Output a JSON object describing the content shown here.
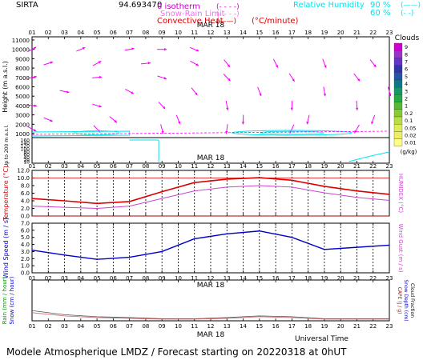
{
  "header": {
    "station": "SIRTA",
    "station_code": "94.69347",
    "extra": "0",
    "legend_isotherm": "0 isotherm",
    "legend_snow_rain": "Snow-Rain Limit",
    "legend_convective": "Convective Heat",
    "legend_convective_unit": "(°C/minute)",
    "legend_rh": "Relative Humidity",
    "rh_90": "90 %",
    "rh_60": "60 %"
  },
  "date_label": "MAR 18",
  "hours": [
    "01",
    "02",
    "03",
    "04",
    "05",
    "06",
    "07",
    "08",
    "09",
    "10",
    "11",
    "12",
    "13",
    "14",
    "15",
    "16",
    "17",
    "18",
    "19",
    "20",
    "21",
    "22",
    "23"
  ],
  "footer": {
    "universal_time": "Universal Time",
    "credit": "Modele Atmospherique LMDZ / Forecast starting on 20220318 at 0hUT"
  },
  "colors": {
    "wind_arrows": "#ff00ff",
    "temperature": "#dd0000",
    "humidex": "#cc44cc",
    "wind_speed": "#0000cc",
    "humidity": "#00e5ee",
    "rain": "#009900",
    "snow": "#0000cc",
    "cloud_fraction": "#000000",
    "capc": "#cc0000"
  },
  "chart_data": [
    {
      "id": "wind_profile",
      "type": "scatter",
      "ylabel": "Height  (m a.s.l.)",
      "ylabel2": "Up to 200 m a.s.l.",
      "upper_ticks": [
        1000,
        2000,
        3000,
        4000,
        5000,
        6000,
        7000,
        8000,
        9000,
        10000,
        11000
      ],
      "lower_ticks": [
        10,
        20,
        40,
        60,
        80,
        100,
        120,
        140,
        160
      ],
      "levels": [
        1000,
        2000,
        3000,
        4000,
        5000,
        6000,
        7000,
        8000,
        9000,
        10000,
        11000
      ],
      "arrows": [
        {
          "hour": 1,
          "level": 10000,
          "dir": 0.5
        },
        {
          "hour": 4,
          "level": 10000,
          "dir": 0.4
        },
        {
          "hour": 7,
          "level": 10000,
          "dir": 0.2
        },
        {
          "hour": 9,
          "level": 10000,
          "dir": 0.0
        },
        {
          "hour": 11,
          "level": 10000,
          "dir": -0.4
        },
        {
          "hour": 2,
          "level": 8500,
          "dir": 0.3
        },
        {
          "hour": 5,
          "level": 8500,
          "dir": 0.5
        },
        {
          "hour": 8,
          "level": 8500,
          "dir": 0.1
        },
        {
          "hour": 11,
          "level": 8500,
          "dir": -0.5
        },
        {
          "hour": 13,
          "level": 8500,
          "dir": -0.9
        },
        {
          "hour": 16,
          "level": 8500,
          "dir": -1.1
        },
        {
          "hour": 19,
          "level": 8500,
          "dir": -1.2
        },
        {
          "hour": 22,
          "level": 8500,
          "dir": -0.9
        },
        {
          "hour": 1,
          "level": 7000,
          "dir": 0.2
        },
        {
          "hour": 5,
          "level": 7000,
          "dir": 0.1
        },
        {
          "hour": 9,
          "level": 7000,
          "dir": -0.3
        },
        {
          "hour": 13,
          "level": 7000,
          "dir": -0.8
        },
        {
          "hour": 17,
          "level": 7000,
          "dir": -1.0
        },
        {
          "hour": 21,
          "level": 7000,
          "dir": -0.9
        },
        {
          "hour": 3,
          "level": 5500,
          "dir": -0.2
        },
        {
          "hour": 7,
          "level": 5500,
          "dir": -0.5
        },
        {
          "hour": 11,
          "level": 5500,
          "dir": -0.9
        },
        {
          "hour": 15,
          "level": 5500,
          "dir": -1.2
        },
        {
          "hour": 19,
          "level": 5500,
          "dir": -1.4
        },
        {
          "hour": 23,
          "level": 5500,
          "dir": -1.3
        },
        {
          "hour": 1,
          "level": 4000,
          "dir": -0.1
        },
        {
          "hour": 5,
          "level": 4000,
          "dir": -0.3
        },
        {
          "hour": 9,
          "level": 4000,
          "dir": -0.8
        },
        {
          "hour": 13,
          "level": 4000,
          "dir": -1.4
        },
        {
          "hour": 17,
          "level": 4000,
          "dir": -1.6
        },
        {
          "hour": 21,
          "level": 4000,
          "dir": -1.5
        },
        {
          "hour": 2,
          "level": 2500,
          "dir": -0.4
        },
        {
          "hour": 6,
          "level": 2500,
          "dir": -0.7
        },
        {
          "hour": 10,
          "level": 2500,
          "dir": -1.2
        },
        {
          "hour": 14,
          "level": 2500,
          "dir": -1.6
        },
        {
          "hour": 18,
          "level": 2500,
          "dir": -1.8
        },
        {
          "hour": 22,
          "level": 2500,
          "dir": -1.9
        },
        {
          "hour": 1,
          "level": 1500,
          "dir": -0.5
        },
        {
          "hour": 5,
          "level": 1500,
          "dir": -0.8
        },
        {
          "hour": 9,
          "level": 1500,
          "dir": -1.3
        },
        {
          "hour": 13,
          "level": 1500,
          "dir": -1.7
        },
        {
          "hour": 17,
          "level": 1500,
          "dir": -2.0
        },
        {
          "hour": 21,
          "level": 1500,
          "dir": -2.1
        }
      ]
    },
    {
      "id": "cloud_scale",
      "type": "heatmap",
      "title": "Clouds",
      "unit": "(g/kg)",
      "ticks": [
        "9",
        "8",
        "7",
        "6",
        "5",
        "4",
        "3",
        "2",
        "1",
        "0.2",
        "0.1",
        "0.05",
        "0.02",
        "0.01"
      ],
      "colors": [
        "#cc00cc",
        "#9933cc",
        "#6633cc",
        "#3333aa",
        "#2255aa",
        "#117788",
        "#119966",
        "#22aa44",
        "#55bb33",
        "#88cc33",
        "#bbdd44",
        "#ddee55",
        "#eeee66",
        "#ffff88"
      ]
    },
    {
      "id": "temperature",
      "type": "line",
      "ylabel": "Temperature (°C)",
      "ylabel_right": "HUMIDEX (°C)",
      "ylim": [
        0,
        12
      ],
      "yticks": [
        "0.0",
        "2.0",
        "4.0",
        "6.0",
        "8.0",
        "10.0",
        "12.0"
      ],
      "x": [
        1,
        3,
        5,
        7,
        9,
        11,
        13,
        15,
        17,
        19,
        21,
        23
      ],
      "series": [
        {
          "key": "temperature",
          "values": [
            4.6,
            4.0,
            3.3,
            3.8,
            6.4,
            8.8,
            9.7,
            10.1,
            9.4,
            7.8,
            6.6,
            5.7
          ]
        },
        {
          "key": "humidex",
          "values": [
            2.6,
            2.3,
            2.0,
            2.6,
            4.6,
            6.6,
            7.6,
            8.0,
            7.6,
            6.1,
            4.9,
            4.1
          ]
        }
      ]
    },
    {
      "id": "wind_speed",
      "type": "line",
      "ylabel": "Wind Speed (m / s)",
      "ylabel_right": "Wind Gust (m / s)",
      "ylim": [
        0,
        7
      ],
      "yticks": [
        "0.0",
        "1.0",
        "2.0",
        "3.0",
        "4.0",
        "5.0",
        "6.0",
        "7.0"
      ],
      "x": [
        1,
        3,
        5,
        7,
        9,
        11,
        13,
        15,
        17,
        19,
        21,
        23
      ],
      "series": [
        {
          "key": "wind_speed",
          "values": [
            3.2,
            2.5,
            1.9,
            2.2,
            3.0,
            4.8,
            5.5,
            5.9,
            5.0,
            3.3,
            3.6,
            3.9
          ]
        }
      ]
    },
    {
      "id": "precipitation",
      "type": "line",
      "ylabel": "Rain (mm / hour)",
      "ylabel2": "Snow (cm / hour)",
      "ylabel_right": "CAPE (J / g)",
      "ylabel_right2": "Snow Depth (cm)",
      "ylabel_right3": "Cloud Fraction",
      "x": [
        1,
        3,
        5,
        7,
        9,
        11,
        13,
        15,
        17,
        19,
        21,
        23
      ],
      "series": [
        {
          "key": "cloud_fraction",
          "values": [
            0.25,
            0.15,
            0.1,
            0.08,
            0.05,
            0.05,
            0.08,
            0.12,
            0.1,
            0.05,
            0.05,
            0.05
          ]
        },
        {
          "key": "capc",
          "values": [
            0.2,
            0.12,
            0.08,
            0.06,
            0.04,
            0.04,
            0.06,
            0.1,
            0.08,
            0.04,
            0.04,
            0.04
          ]
        }
      ]
    }
  ]
}
